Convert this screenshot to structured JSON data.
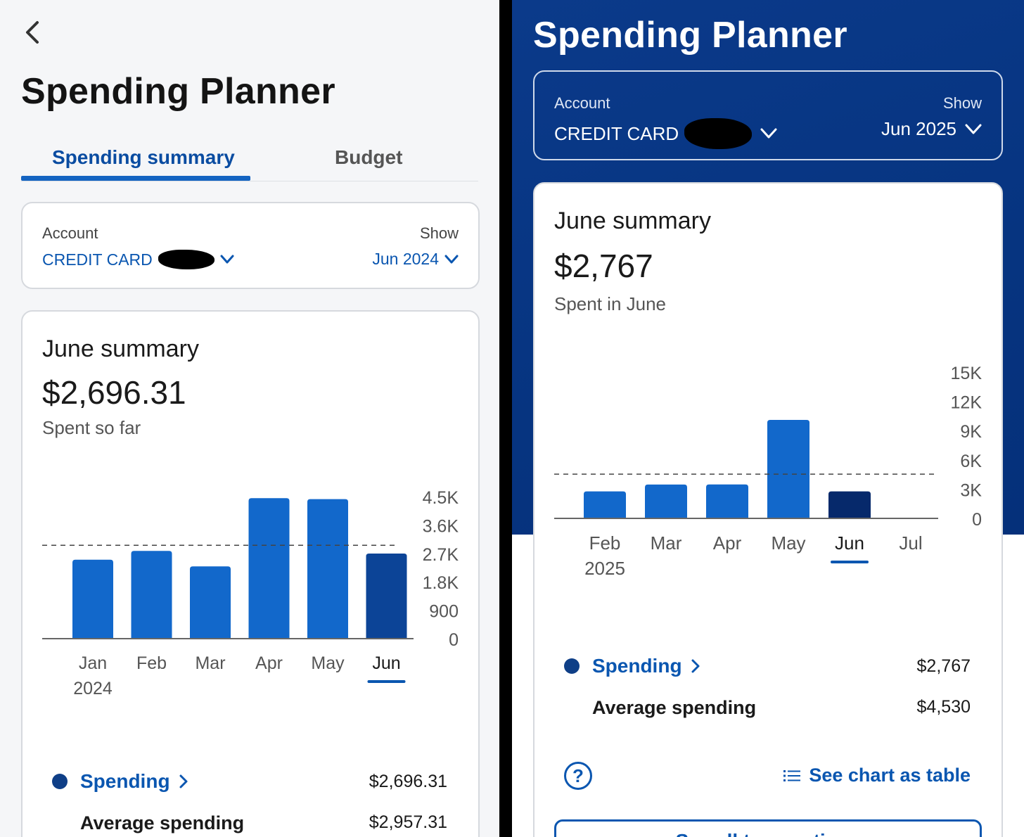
{
  "left": {
    "title": "Spending Planner",
    "tabs": [
      {
        "label": "Spending summary",
        "selected": true
      },
      {
        "label": "Budget",
        "selected": false
      }
    ],
    "account": {
      "label": "Account",
      "value": "CREDIT CARD",
      "show_label": "Show",
      "show_value": "Jun 2024"
    },
    "summary": {
      "title": "June summary",
      "amount": "$2,696.31",
      "subtitle": "Spent so far"
    },
    "legend": {
      "spending_label": "Spending",
      "spending_value": "$2,696.31",
      "average_label": "Average spending",
      "average_value": "$2,957.31"
    }
  },
  "right": {
    "title": "Spending Planner",
    "account": {
      "label": "Account",
      "value": "CREDIT CARD",
      "show_label": "Show",
      "show_value": "Jun 2025"
    },
    "summary": {
      "title": "June summary",
      "amount": "$2,767",
      "subtitle": "Spent in June"
    },
    "legend": {
      "spending_label": "Spending",
      "spending_value": "$2,767",
      "average_label": "Average spending",
      "average_value": "$4,530"
    },
    "help_symbol": "?",
    "table_link": "See chart as table",
    "all_transactions_button": "See all transactions"
  },
  "colors": {
    "bar": "#1268cb",
    "bar_selected": "#0c4497",
    "bar_selected_right": "#06296b",
    "link": "#0a56b0",
    "header_bg": "#0b3a8a"
  },
  "chart_data": [
    {
      "type": "bar",
      "title": "June summary",
      "categories": [
        "Jan",
        "Feb",
        "Mar",
        "Apr",
        "May",
        "Jun"
      ],
      "category_sublabels": [
        "2024",
        "",
        "",
        "",
        "",
        ""
      ],
      "values": [
        2500,
        2780,
        2290,
        4450,
        4420,
        2696.31
      ],
      "selected_index": 5,
      "average": 2957.31,
      "ylim": [
        0,
        4500
      ],
      "yticks": [
        "4.5K",
        "3.6K",
        "2.7K",
        "1.8K",
        "900",
        "0"
      ],
      "ytick_values": [
        4500,
        3600,
        2700,
        1800,
        900,
        0
      ],
      "xlabel": "",
      "ylabel": ""
    },
    {
      "type": "bar",
      "title": "June summary",
      "categories": [
        "Feb",
        "Mar",
        "Apr",
        "May",
        "Jun",
        "Jul"
      ],
      "category_sublabels": [
        "2025",
        "",
        "",
        "",
        "",
        ""
      ],
      "values": [
        2767,
        3470,
        3480,
        10100,
        2767,
        null
      ],
      "selected_index": 4,
      "average": 4530,
      "ylim": [
        0,
        15000
      ],
      "yticks": [
        "15K",
        "12K",
        "9K",
        "6K",
        "3K",
        "0"
      ],
      "ytick_values": [
        15000,
        12000,
        9000,
        6000,
        3000,
        0
      ],
      "xlabel": "",
      "ylabel": ""
    }
  ]
}
